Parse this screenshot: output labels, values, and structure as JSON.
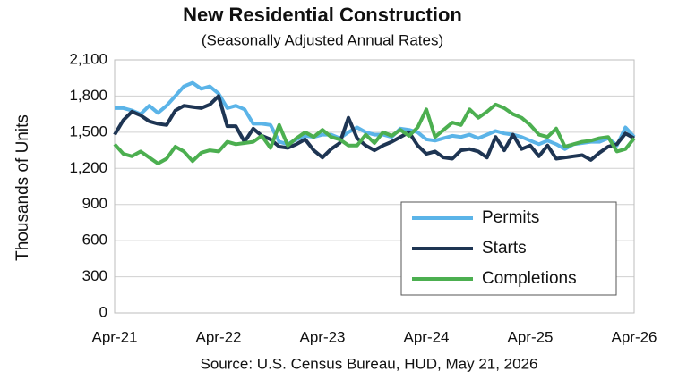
{
  "chart_data": {
    "type": "line",
    "title": "New Residential Construction",
    "subtitle": "(Seasonally Adjusted Annual Rates)",
    "y_label": "Thousands of Units",
    "source": "Source:  U.S. Census Bureau, HUD, May 21, 2026",
    "categories": [
      "Apr-21",
      null,
      null,
      null,
      null,
      null,
      null,
      null,
      null,
      null,
      null,
      null,
      "Apr-22",
      null,
      null,
      null,
      null,
      null,
      null,
      null,
      null,
      null,
      null,
      null,
      "Apr-23",
      null,
      null,
      null,
      null,
      null,
      null,
      null,
      null,
      null,
      null,
      null,
      "Apr-24",
      null,
      null,
      null,
      null,
      null,
      null,
      null,
      null,
      null,
      null,
      null,
      "Apr-25",
      null,
      null,
      null,
      null,
      null,
      null,
      null,
      null,
      null,
      null,
      null,
      "Apr-26"
    ],
    "series": [
      {
        "name": "Permits",
        "color": "#5bb4e8",
        "values": [
          1700,
          1700,
          1680,
          1650,
          1720,
          1660,
          1720,
          1800,
          1880,
          1910,
          1860,
          1880,
          1820,
          1700,
          1720,
          1690,
          1570,
          1570,
          1560,
          1420,
          1400,
          1440,
          1470,
          1460,
          1480,
          1480,
          1450,
          1500,
          1540,
          1500,
          1480,
          1480,
          1460,
          1530,
          1520,
          1500,
          1440,
          1430,
          1450,
          1470,
          1460,
          1480,
          1450,
          1480,
          1510,
          1490,
          1480,
          1460,
          1430,
          1400,
          1430,
          1400,
          1360,
          1400,
          1410,
          1420,
          1420,
          1450,
          1390,
          1540,
          1460
        ]
      },
      {
        "name": "Starts",
        "color": "#1e3553",
        "values": [
          1480,
          1600,
          1670,
          1640,
          1590,
          1570,
          1560,
          1680,
          1720,
          1710,
          1700,
          1730,
          1800,
          1550,
          1550,
          1420,
          1530,
          1470,
          1440,
          1380,
          1370,
          1400,
          1440,
          1350,
          1290,
          1360,
          1410,
          1620,
          1450,
          1390,
          1350,
          1390,
          1420,
          1460,
          1500,
          1390,
          1320,
          1340,
          1290,
          1280,
          1350,
          1360,
          1340,
          1290,
          1460,
          1350,
          1480,
          1360,
          1390,
          1300,
          1390,
          1280,
          1290,
          1300,
          1310,
          1270,
          1330,
          1380,
          1400,
          1490,
          1450
        ]
      },
      {
        "name": "Completions",
        "color": "#4caf50",
        "values": [
          1400,
          1320,
          1300,
          1340,
          1290,
          1240,
          1280,
          1380,
          1340,
          1260,
          1330,
          1350,
          1340,
          1420,
          1400,
          1410,
          1420,
          1470,
          1370,
          1560,
          1390,
          1450,
          1500,
          1460,
          1520,
          1460,
          1440,
          1390,
          1390,
          1480,
          1410,
          1500,
          1470,
          1520,
          1470,
          1540,
          1690,
          1460,
          1520,
          1580,
          1560,
          1690,
          1620,
          1670,
          1730,
          1700,
          1650,
          1620,
          1560,
          1480,
          1460,
          1530,
          1380,
          1400,
          1420,
          1430,
          1450,
          1460,
          1340,
          1360,
          1450
        ]
      }
    ],
    "ylim": [
      0,
      2100
    ],
    "yticks": [
      0,
      300,
      600,
      900,
      {
        "value": 1200,
        "label": "1,200"
      },
      {
        "value": 1500,
        "label": "1,500"
      },
      {
        "value": 1800,
        "label": "1,800"
      },
      {
        "value": 2100,
        "label": "2,100"
      }
    ],
    "grid": true,
    "legend": "lower right"
  }
}
